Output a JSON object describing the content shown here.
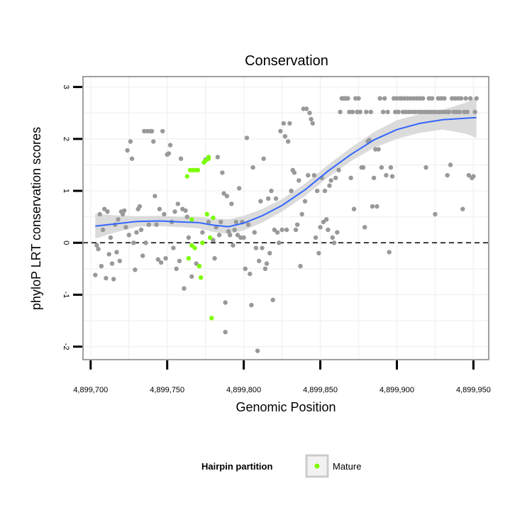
{
  "chart_data": {
    "type": "scatter",
    "title": "Conservation",
    "xlabel": "Genomic Position",
    "ylabel": "phyloP LRT conservation scores",
    "xlim": [
      4899695,
      4899960
    ],
    "ylim": [
      -2.25,
      3.2
    ],
    "x_ticks": [
      4899700,
      4899750,
      4899800,
      4899850,
      4899900,
      4899950
    ],
    "x_tick_labels": [
      "4,899,700",
      "4,899,750",
      "4,899,800",
      "4,899,850",
      "4,899,900",
      "4,899,950"
    ],
    "y_ticks": [
      -2,
      -1,
      0,
      1,
      2,
      3
    ],
    "y_tick_labels": [
      "-2",
      "-1",
      "0",
      "1",
      "2",
      "3"
    ],
    "reference_line": {
      "y": 0,
      "style": "dashed"
    },
    "grid": true,
    "legend": {
      "title": "Hairpin partition",
      "position": "bottom",
      "entries": [
        {
          "label": "Mature",
          "color": "#7cfc00"
        }
      ]
    },
    "colors": {
      "other": "#999999",
      "mature": "#7cfc00",
      "smooth": "#3366ff",
      "band": "#d9d9d9"
    },
    "series": [
      {
        "name": "Other",
        "color": "#999999",
        "points": [
          [
            4899703,
            -0.62
          ],
          [
            4899704,
            -0.05
          ],
          [
            4899705,
            -0.12
          ],
          [
            4899706,
            0.55
          ],
          [
            4899707,
            -0.45
          ],
          [
            4899708,
            0.25
          ],
          [
            4899709,
            0.65
          ],
          [
            4899710,
            -0.68
          ],
          [
            4899711,
            0.6
          ],
          [
            4899712,
            -0.22
          ],
          [
            4899713,
            0.1
          ],
          [
            4899714,
            -0.4
          ],
          [
            4899715,
            -0.7
          ],
          [
            4899716,
            0.35
          ],
          [
            4899717,
            -0.18
          ],
          [
            4899718,
            0.45
          ],
          [
            4899719,
            -0.35
          ],
          [
            4899720,
            0.6
          ],
          [
            4899721,
            0.55
          ],
          [
            4899722,
            0.62
          ],
          [
            4899723,
            0.3
          ],
          [
            4899724,
            1.78
          ],
          [
            4899725,
            0.15
          ],
          [
            4899726,
            1.95
          ],
          [
            4899727,
            1.62
          ],
          [
            4899728,
            0.0
          ],
          [
            4899729,
            -0.52
          ],
          [
            4899730,
            0.2
          ],
          [
            4899731,
            0.65
          ],
          [
            4899732,
            0.7
          ],
          [
            4899733,
            0.25
          ],
          [
            4899734,
            -0.25
          ],
          [
            4899735,
            2.15
          ],
          [
            4899736,
            0.0
          ],
          [
            4899737,
            2.15
          ],
          [
            4899738,
            0.35
          ],
          [
            4899739,
            2.15
          ],
          [
            4899740,
            2.15
          ],
          [
            4899741,
            1.95
          ],
          [
            4899742,
            0.9
          ],
          [
            4899743,
            0.35
          ],
          [
            4899744,
            -0.32
          ],
          [
            4899745,
            0.65
          ],
          [
            4899746,
            -0.38
          ],
          [
            4899747,
            2.15
          ],
          [
            4899748,
            0.55
          ],
          [
            4899749,
            -0.3
          ],
          [
            4899750,
            1.7
          ],
          [
            4899751,
            1.72
          ],
          [
            4899752,
            1.88
          ],
          [
            4899753,
            0.4
          ],
          [
            4899754,
            -0.1
          ],
          [
            4899755,
            0.6
          ],
          [
            4899756,
            -0.5
          ],
          [
            4899757,
            0.75
          ],
          [
            4899758,
            -0.35
          ],
          [
            4899759,
            1.62
          ],
          [
            4899760,
            0.65
          ],
          [
            4899761,
            -0.88
          ],
          [
            4899762,
            0.62
          ],
          [
            4899763,
            0.5
          ],
          [
            4899764,
            0.1
          ],
          [
            4899766,
            -0.65
          ],
          [
            4899769,
            -0.4
          ],
          [
            4899773,
            0.2
          ],
          [
            4899775,
            1.6
          ],
          [
            4899777,
            0.4
          ],
          [
            4899780,
            0.05
          ],
          [
            4899781,
            -0.3
          ],
          [
            4899782,
            0.3
          ],
          [
            4899783,
            1.65
          ],
          [
            4899784,
            0.15
          ],
          [
            4899785,
            0.4
          ],
          [
            4899786,
            1.35
          ],
          [
            4899787,
            0.95
          ],
          [
            4899788,
            -1.15
          ],
          [
            4899788,
            -1.72
          ],
          [
            4899789,
            0.9
          ],
          [
            4899790,
            0.22
          ],
          [
            4899791,
            0.15
          ],
          [
            4899792,
            0.75
          ],
          [
            4899793,
            -0.05
          ],
          [
            4899794,
            0.25
          ],
          [
            4899795,
            0.4
          ],
          [
            4899796,
            0.15
          ],
          [
            4899797,
            1.05
          ],
          [
            4899798,
            0.1
          ],
          [
            4899799,
            0.4
          ],
          [
            4899800,
            0.1
          ],
          [
            4899801,
            -0.5
          ],
          [
            4899802,
            2.02
          ],
          [
            4899803,
            0.35
          ],
          [
            4899804,
            -0.6
          ],
          [
            4899805,
            -1.2
          ],
          [
            4899806,
            1.45
          ],
          [
            4899807,
            0.2
          ],
          [
            4899808,
            -0.1
          ],
          [
            4899809,
            -2.08
          ],
          [
            4899810,
            -0.35
          ],
          [
            4899811,
            0.8
          ],
          [
            4899812,
            -0.1
          ],
          [
            4899813,
            1.62
          ],
          [
            4899814,
            -0.5
          ],
          [
            4899815,
            -0.4
          ],
          [
            4899816,
            0.85
          ],
          [
            4899817,
            -0.2
          ],
          [
            4899818,
            1.0
          ],
          [
            4899819,
            -1.1
          ],
          [
            4899820,
            0.25
          ],
          [
            4899821,
            0.85
          ],
          [
            4899822,
            0.2
          ],
          [
            4899823,
            0.0
          ],
          [
            4899824,
            2.15
          ],
          [
            4899825,
            0.25
          ],
          [
            4899826,
            2.3
          ],
          [
            4899827,
            2.05
          ],
          [
            4899828,
            0.25
          ],
          [
            4899829,
            1.95
          ],
          [
            4899830,
            2.3
          ],
          [
            4899831,
            1.0
          ],
          [
            4899832,
            1.4
          ],
          [
            4899833,
            1.35
          ],
          [
            4899834,
            0.25
          ],
          [
            4899835,
            0.35
          ],
          [
            4899836,
            1.2
          ],
          [
            4899837,
            -0.45
          ],
          [
            4899838,
            0.55
          ],
          [
            4899839,
            2.58
          ],
          [
            4899840,
            0.8
          ],
          [
            4899841,
            2.58
          ],
          [
            4899842,
            1.3
          ],
          [
            4899843,
            2.5
          ],
          [
            4899844,
            2.38
          ],
          [
            4899845,
            2.3
          ],
          [
            4899846,
            1.3
          ],
          [
            4899847,
            0.1
          ],
          [
            4899848,
            1.0
          ],
          [
            4899849,
            -0.2
          ],
          [
            4899850,
            0.3
          ],
          [
            4899851,
            1.25
          ],
          [
            4899852,
            0.4
          ],
          [
            4899853,
            1.0
          ],
          [
            4899854,
            0.45
          ],
          [
            4899855,
            0.25
          ],
          [
            4899856,
            1.1
          ],
          [
            4899857,
            1.2
          ],
          [
            4899858,
            0.1
          ],
          [
            4899859,
            0.0
          ],
          [
            4899860,
            1.25
          ],
          [
            4899861,
            0.2
          ],
          [
            4899862,
            1.4
          ],
          [
            4899863,
            2.52
          ],
          [
            4899864,
            2.78
          ],
          [
            4899865,
            2.78
          ],
          [
            4899866,
            2.78
          ],
          [
            4899867,
            2.78
          ],
          [
            4899868,
            2.78
          ],
          [
            4899869,
            2.52
          ],
          [
            4899870,
            1.25
          ],
          [
            4899871,
            2.52
          ],
          [
            4899872,
            0.65
          ],
          [
            4899873,
            2.78
          ],
          [
            4899874,
            2.52
          ],
          [
            4899875,
            2.78
          ],
          [
            4899876,
            2.52
          ],
          [
            4899877,
            1.45
          ],
          [
            4899878,
            1.45
          ],
          [
            4899879,
            0.3
          ],
          [
            4899880,
            2.52
          ],
          [
            4899881,
            1.95
          ],
          [
            4899882,
            1.98
          ],
          [
            4899883,
            2.52
          ],
          [
            4899884,
            0.7
          ],
          [
            4899885,
            1.25
          ],
          [
            4899886,
            1.8
          ],
          [
            4899887,
            0.7
          ],
          [
            4899888,
            1.8
          ],
          [
            4899889,
            2.78
          ],
          [
            4899890,
            1.45
          ],
          [
            4899891,
            2.52
          ],
          [
            4899892,
            2.78
          ],
          [
            4899893,
            1.3
          ],
          [
            4899894,
            2.52
          ],
          [
            4899895,
            -0.18
          ],
          [
            4899896,
            1.45
          ],
          [
            4899897,
            1.28
          ],
          [
            4899898,
            2.78
          ],
          [
            4899899,
            2.52
          ],
          [
            4899900,
            2.78
          ],
          [
            4899901,
            2.52
          ],
          [
            4899902,
            2.78
          ],
          [
            4899903,
            2.78
          ],
          [
            4899904,
            2.52
          ],
          [
            4899905,
            2.78
          ],
          [
            4899906,
            2.52
          ],
          [
            4899907,
            2.78
          ],
          [
            4899908,
            2.52
          ],
          [
            4899909,
            2.78
          ],
          [
            4899910,
            2.52
          ],
          [
            4899911,
            2.78
          ],
          [
            4899912,
            2.52
          ],
          [
            4899913,
            2.78
          ],
          [
            4899914,
            2.52
          ],
          [
            4899915,
            2.78
          ],
          [
            4899916,
            2.52
          ],
          [
            4899917,
            2.78
          ],
          [
            4899918,
            2.52
          ],
          [
            4899919,
            1.45
          ],
          [
            4899920,
            2.52
          ],
          [
            4899921,
            2.78
          ],
          [
            4899922,
            2.52
          ],
          [
            4899923,
            2.78
          ],
          [
            4899924,
            2.52
          ],
          [
            4899925,
            0.55
          ],
          [
            4899926,
            2.52
          ],
          [
            4899927,
            2.78
          ],
          [
            4899928,
            2.52
          ],
          [
            4899929,
            2.78
          ],
          [
            4899930,
            2.52
          ],
          [
            4899931,
            2.78
          ],
          [
            4899932,
            2.52
          ],
          [
            4899933,
            1.3
          ],
          [
            4899934,
            2.52
          ],
          [
            4899935,
            1.5
          ],
          [
            4899936,
            2.78
          ],
          [
            4899937,
            2.52
          ],
          [
            4899938,
            2.78
          ],
          [
            4899939,
            2.52
          ],
          [
            4899940,
            2.78
          ],
          [
            4899941,
            2.52
          ],
          [
            4899942,
            2.78
          ],
          [
            4899943,
            0.65
          ],
          [
            4899944,
            2.52
          ],
          [
            4899945,
            2.78
          ],
          [
            4899946,
            2.52
          ],
          [
            4899947,
            1.3
          ],
          [
            4899948,
            2.78
          ],
          [
            4899949,
            1.25
          ],
          [
            4899950,
            1.28
          ],
          [
            4899951,
            2.52
          ],
          [
            4899952,
            2.78
          ]
        ]
      },
      {
        "name": "Mature",
        "color": "#7cfc00",
        "points": [
          [
            4899763,
            1.28
          ],
          [
            4899764,
            -0.3
          ],
          [
            4899765,
            1.4
          ],
          [
            4899766,
            -0.05
          ],
          [
            4899766,
            0.45
          ],
          [
            4899767,
            1.4
          ],
          [
            4899768,
            -0.1
          ],
          [
            4899769,
            1.4
          ],
          [
            4899770,
            1.4
          ],
          [
            4899771,
            -0.45
          ],
          [
            4899772,
            -0.67
          ],
          [
            4899773,
            0.0
          ],
          [
            4899774,
            1.55
          ],
          [
            4899775,
            1.58
          ],
          [
            4899776,
            0.55
          ],
          [
            4899777,
            1.65
          ],
          [
            4899777,
            1.62
          ],
          [
            4899778,
            0.1
          ],
          [
            4899779,
            -1.45
          ],
          [
            4899780,
            0.48
          ]
        ]
      }
    ],
    "smooth": {
      "name": "loess",
      "color": "#3366ff",
      "x": [
        4899703,
        4899715,
        4899730,
        4899745,
        4899760,
        4899770,
        4899780,
        4899790,
        4899800,
        4899812,
        4899825,
        4899840,
        4899855,
        4899870,
        4899885,
        4899900,
        4899915,
        4899930,
        4899945,
        4899952
      ],
      "y": [
        0.32,
        0.36,
        0.41,
        0.42,
        0.4,
        0.39,
        0.34,
        0.31,
        0.38,
        0.52,
        0.72,
        1.02,
        1.38,
        1.7,
        1.98,
        2.18,
        2.3,
        2.37,
        2.4,
        2.41
      ],
      "lower": [
        0.08,
        0.19,
        0.31,
        0.32,
        0.3,
        0.28,
        0.21,
        0.17,
        0.24,
        0.39,
        0.6,
        0.9,
        1.26,
        1.57,
        1.83,
        2.0,
        2.12,
        2.18,
        2.1,
        2.02
      ],
      "upper": [
        0.56,
        0.53,
        0.51,
        0.52,
        0.5,
        0.5,
        0.47,
        0.45,
        0.52,
        0.65,
        0.84,
        1.14,
        1.5,
        1.83,
        2.13,
        2.36,
        2.48,
        2.56,
        2.7,
        2.8
      ]
    }
  }
}
